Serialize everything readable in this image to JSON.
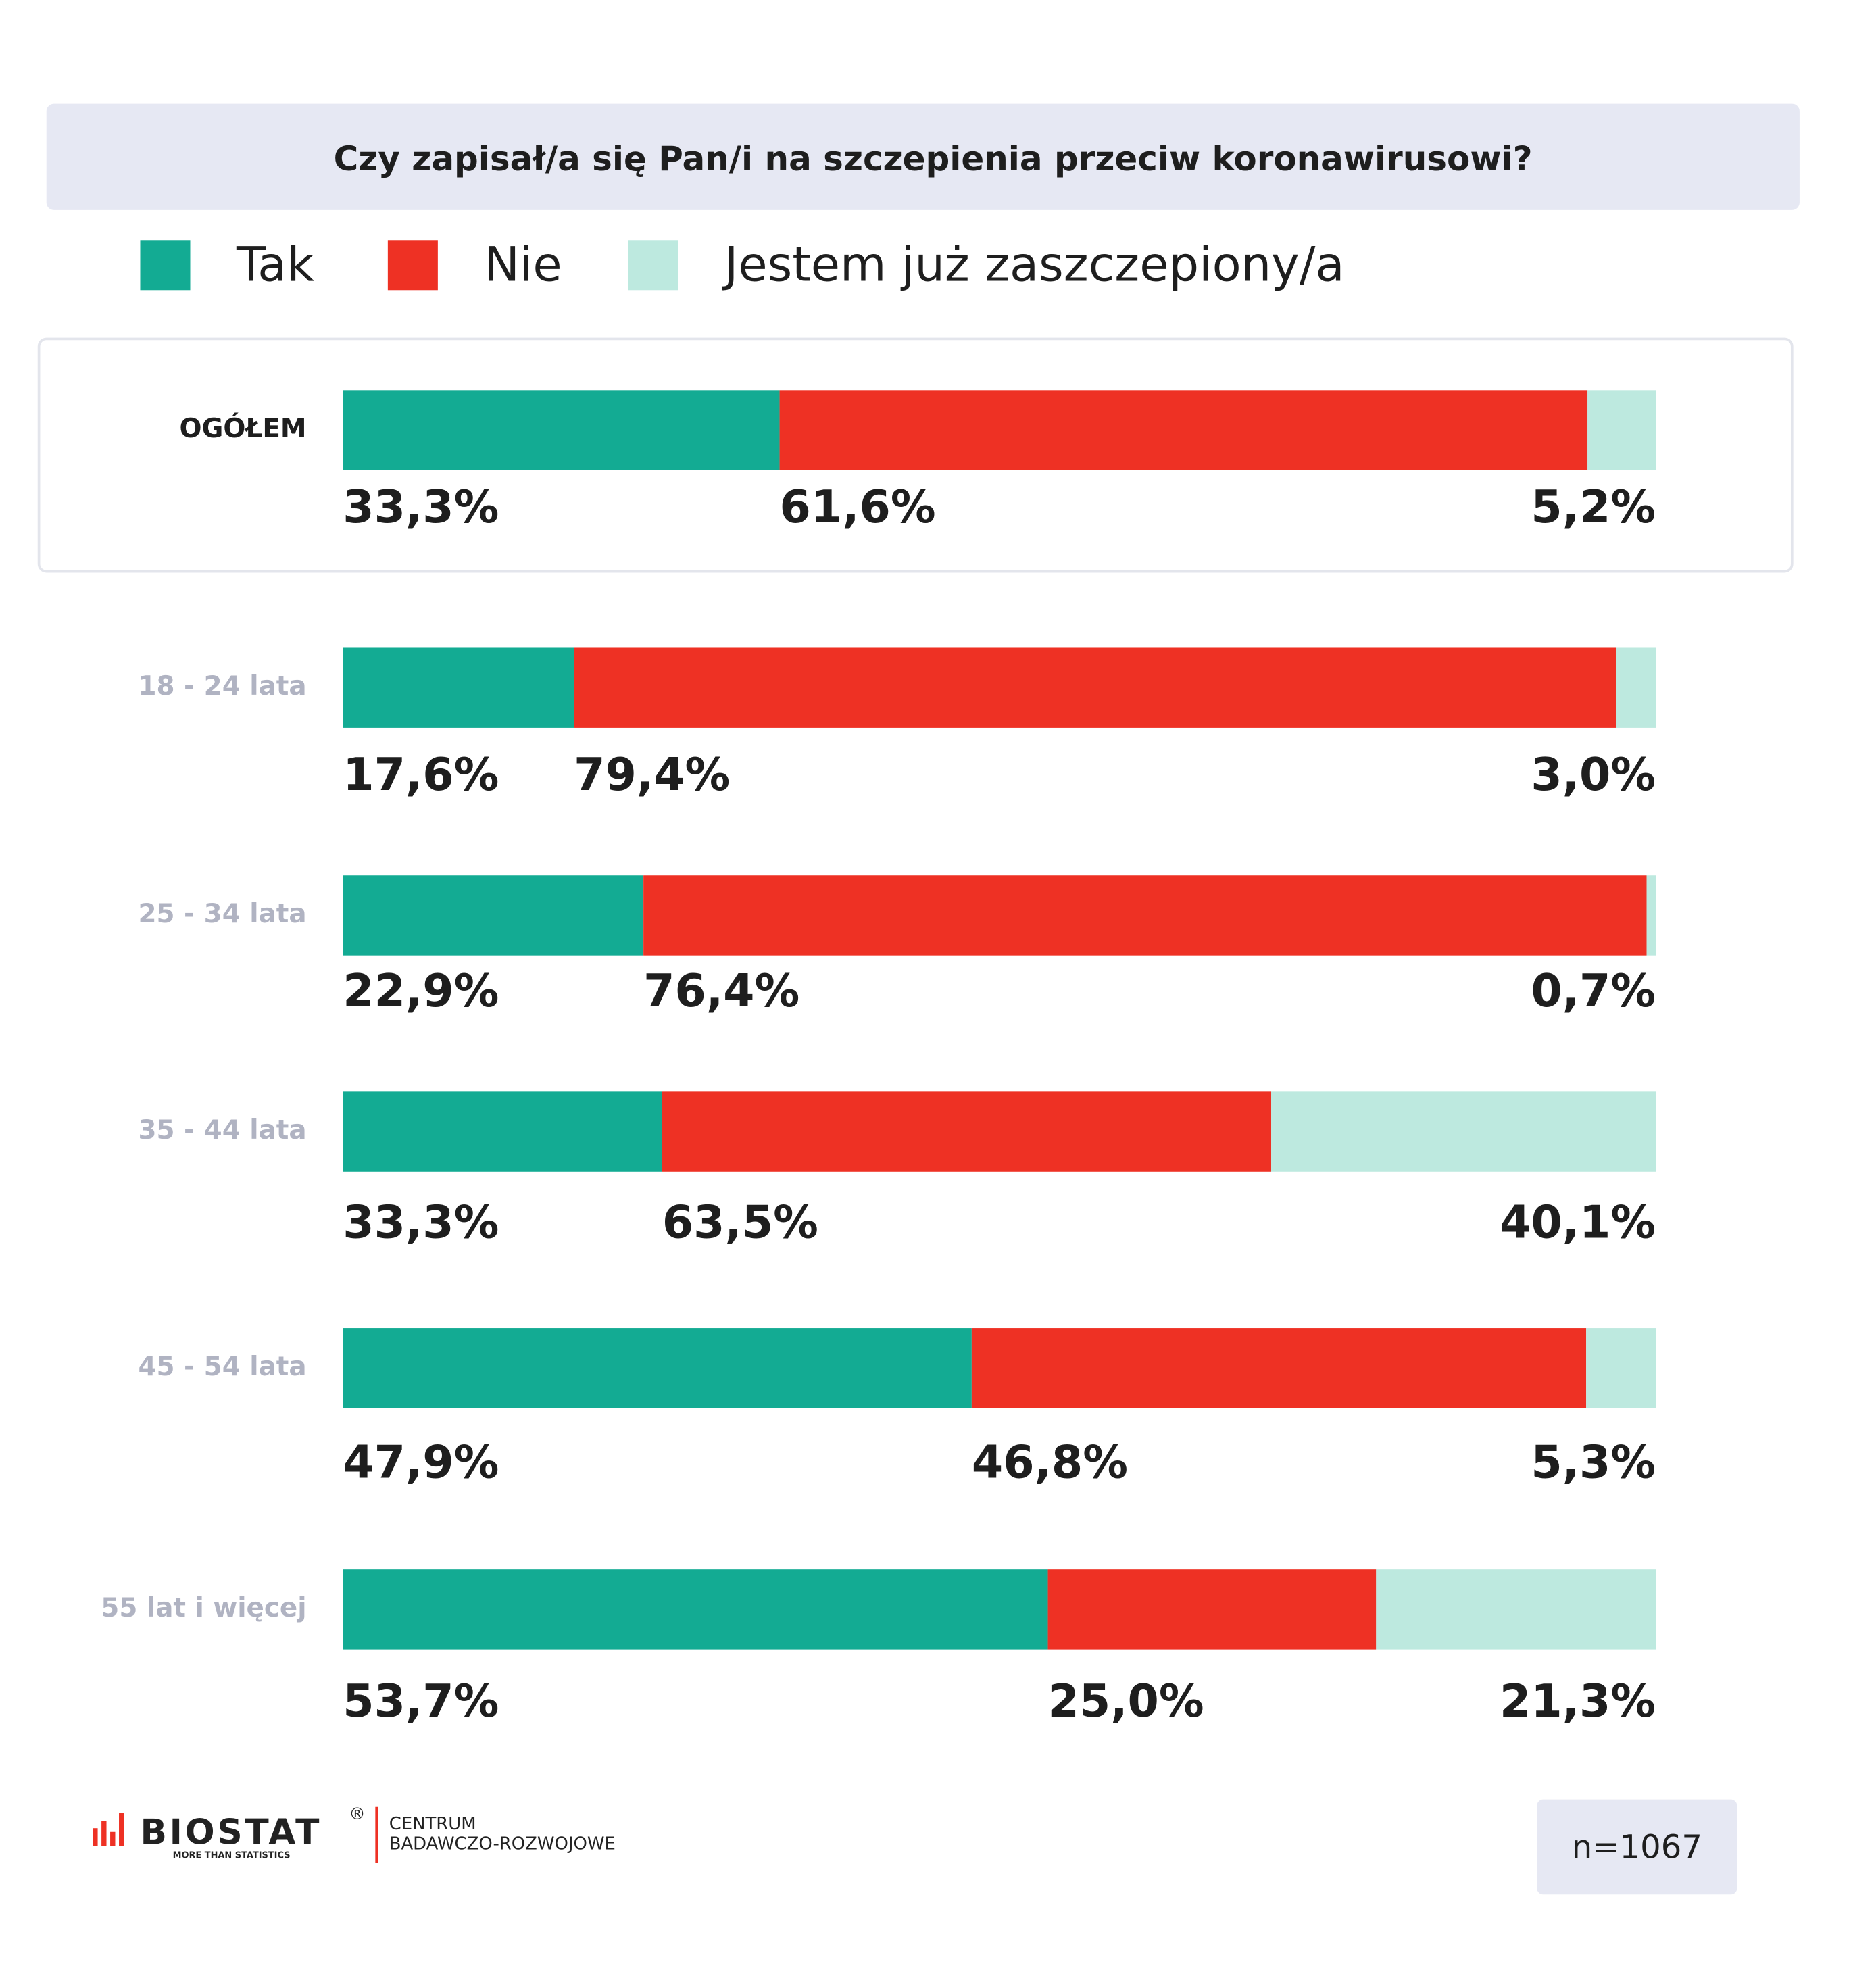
{
  "chart_data": {
    "type": "bar",
    "orientation": "horizontal",
    "stacked": "percent",
    "title": "Czy zapisał/a się Pan/i na szczepienia przeciw koronawirusowi?",
    "categories": [
      "OGÓŁEM",
      "18 - 24 lata",
      "25 - 34 lata",
      "35 - 44 lata",
      "45 - 54 lata",
      "55 lat i więcej"
    ],
    "series": [
      {
        "name": "Tak",
        "color": "#13ab93",
        "values": [
          33.3,
          17.6,
          22.9,
          33.3,
          47.9,
          53.7
        ],
        "value_labels": [
          "33,3%",
          "17,6%",
          "22,9%",
          "33,3%",
          "47,9%",
          "53,7%"
        ]
      },
      {
        "name": "Nie",
        "color": "#ee3124",
        "values": [
          61.6,
          79.4,
          76.4,
          63.5,
          46.8,
          25.0
        ],
        "value_labels": [
          "61,6%",
          "79,4%",
          "76,4%",
          "63,5%",
          "46,8%",
          "25,0%"
        ]
      },
      {
        "name": "Jestem już zaszczepiony/a",
        "color": "#bde9df",
        "values": [
          5.2,
          3.0,
          0.7,
          40.1,
          5.3,
          21.3
        ],
        "value_labels": [
          "5,2%",
          "3,0%",
          "0,7%",
          "40,1%",
          "5,3%",
          "21,3%"
        ]
      }
    ]
  },
  "footer": {
    "brand": "BIOSTAT",
    "registered": "®",
    "tagline": "MORE THAN STATISTICS",
    "unit": [
      "CENTRUM",
      "BADAWCZO-ROZWOJOWE"
    ],
    "sample": "n=1067"
  }
}
